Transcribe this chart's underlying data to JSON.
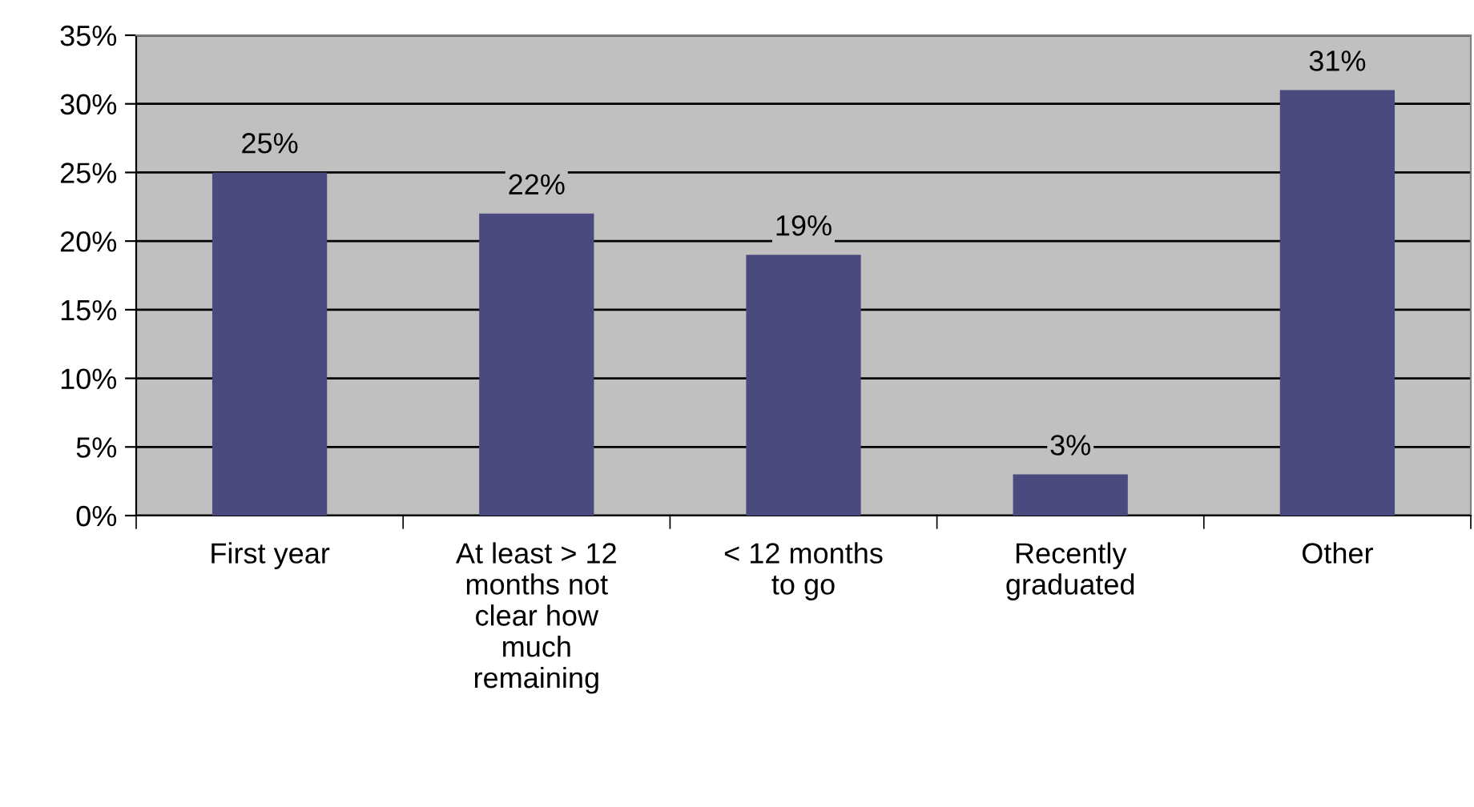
{
  "chart_data": {
    "type": "bar",
    "categories": [
      "First year",
      "At least > 12 months not clear how much remaining",
      "< 12 months to go",
      "Recently graduated",
      "Other"
    ],
    "values": [
      25,
      22,
      19,
      3,
      31
    ],
    "value_labels": [
      "25%",
      "22%",
      "19%",
      "3%",
      "31%"
    ],
    "color": "#4a4a7e",
    "ylim": [
      0,
      35
    ],
    "yticks": [
      {
        "value": 0,
        "label": "0%"
      },
      {
        "value": 5,
        "label": "5%"
      },
      {
        "value": 10,
        "label": "10%"
      },
      {
        "value": 15,
        "label": "15%"
      },
      {
        "value": 20,
        "label": "20%"
      },
      {
        "value": 25,
        "label": "25%"
      },
      {
        "value": 30,
        "label": "30%"
      },
      {
        "value": 35,
        "label": "35%"
      }
    ],
    "grid": "y",
    "legend": false
  }
}
